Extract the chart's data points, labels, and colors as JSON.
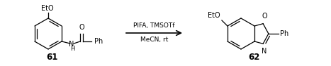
{
  "figsize": [
    4.67,
    0.94
  ],
  "dpi": 100,
  "background": "#ffffff",
  "arrow_text_line1": "PIFA, TMSOTf",
  "arrow_text_line2": "MeCN, rt",
  "compound_61_label": "61",
  "compound_62_label": "62",
  "font_size_struct": 7.0,
  "font_size_arrow": 6.5,
  "font_size_label": 8.5,
  "lw": 0.9
}
